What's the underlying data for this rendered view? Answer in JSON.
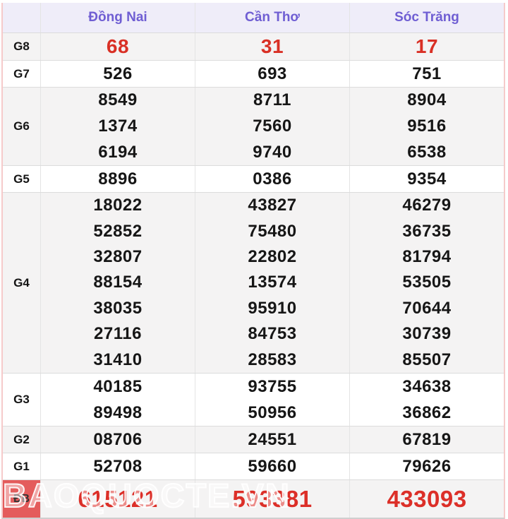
{
  "header": {
    "columns": [
      "Đồng Nai",
      "Cần Thơ",
      "Sóc Trăng"
    ]
  },
  "prizes": [
    {
      "id": "G8",
      "style": "g8",
      "values": [
        [
          "68"
        ],
        [
          "31"
        ],
        [
          "17"
        ]
      ]
    },
    {
      "id": "G7",
      "style": "normal",
      "values": [
        [
          "526"
        ],
        [
          "693"
        ],
        [
          "751"
        ]
      ]
    },
    {
      "id": "G6",
      "style": "normal",
      "values": [
        [
          "8549",
          "1374",
          "6194"
        ],
        [
          "8711",
          "7560",
          "9740"
        ],
        [
          "8904",
          "9516",
          "6538"
        ]
      ]
    },
    {
      "id": "G5",
      "style": "normal",
      "values": [
        [
          "8896"
        ],
        [
          "0386"
        ],
        [
          "9354"
        ]
      ]
    },
    {
      "id": "G4",
      "style": "normal",
      "values": [
        [
          "18022",
          "52852",
          "32807",
          "88154",
          "38035",
          "27116",
          "31410"
        ],
        [
          "43827",
          "75480",
          "22802",
          "13574",
          "95910",
          "84753",
          "28583"
        ],
        [
          "46279",
          "36735",
          "81794",
          "53505",
          "70644",
          "30739",
          "85507"
        ]
      ]
    },
    {
      "id": "G3",
      "style": "normal",
      "values": [
        [
          "40185",
          "89498"
        ],
        [
          "93755",
          "50956"
        ],
        [
          "34638",
          "36862"
        ]
      ]
    },
    {
      "id": "G2",
      "style": "normal",
      "values": [
        [
          "08706"
        ],
        [
          "24551"
        ],
        [
          "67819"
        ]
      ]
    },
    {
      "id": "G1",
      "style": "normal",
      "values": [
        [
          "52708"
        ],
        [
          "59660"
        ],
        [
          "79626"
        ]
      ]
    },
    {
      "id": "ĐB",
      "style": "db",
      "values": [
        [
          "615121"
        ],
        [
          "593381"
        ],
        [
          "433093"
        ]
      ]
    }
  ],
  "watermark": "BAOQUOCTE.VN",
  "colors": {
    "header_bg": "#efedf9",
    "header_text": "#6f5ed3",
    "row_alt_bg": "#f4f3f3",
    "red_number": "#d93025",
    "db_label_bg": "#e45c5c",
    "side_border": "#f6caca"
  }
}
